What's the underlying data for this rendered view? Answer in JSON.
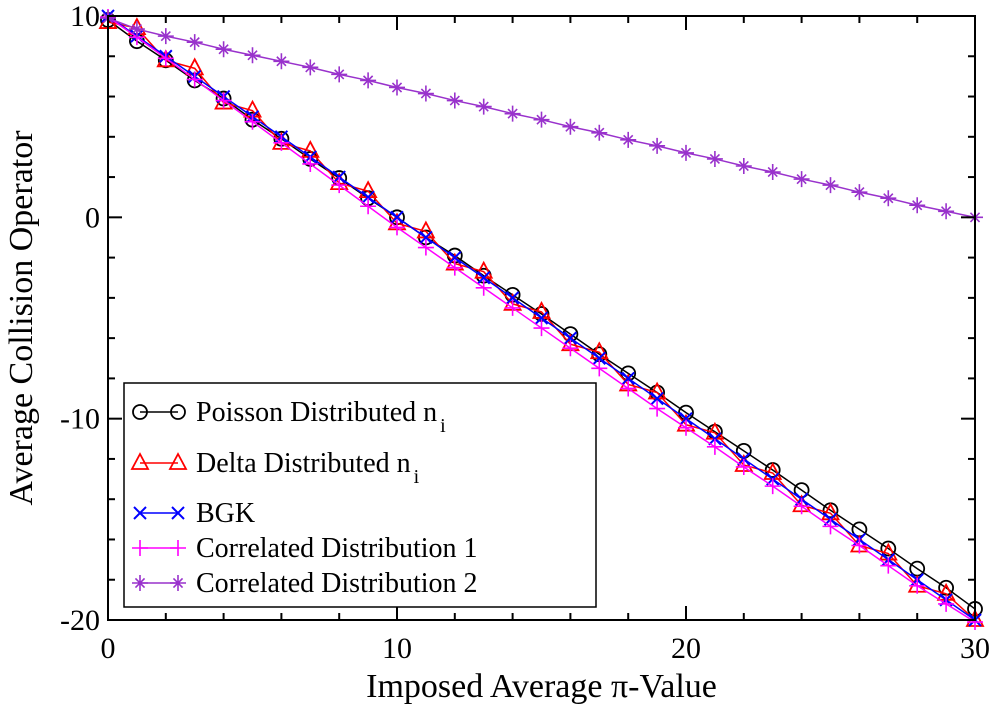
{
  "chart_data": {
    "type": "line",
    "title": "",
    "xlabel": "Imposed Average π-Value",
    "ylabel": "Average Collision Operator",
    "xlim": [
      0,
      30
    ],
    "ylim": [
      -20,
      10
    ],
    "xticks": [
      0,
      10,
      20,
      30
    ],
    "yticks": [
      -20,
      -10,
      0,
      10
    ],
    "xtick_labels": [
      "0",
      "10",
      "20",
      "30"
    ],
    "ytick_labels": [
      "-20",
      "-10",
      "0",
      "10"
    ],
    "grid": false,
    "legend_position": "bottom-left",
    "x": [
      0,
      1,
      2,
      3,
      4,
      5,
      6,
      7,
      8,
      9,
      10,
      11,
      12,
      13,
      14,
      15,
      16,
      17,
      18,
      19,
      20,
      21,
      22,
      23,
      24,
      25,
      26,
      27,
      28,
      29,
      30
    ],
    "series": [
      {
        "name": "Poisson Distributed n",
        "subscript": "i",
        "color": "#000000",
        "marker": "circle",
        "values": [
          9.8,
          8.75,
          7.8,
          6.8,
          5.9,
          4.85,
          3.9,
          2.9,
          1.95,
          0.95,
          0.0,
          -1.0,
          -1.9,
          -2.9,
          -3.85,
          -4.8,
          -5.8,
          -6.8,
          -7.75,
          -8.7,
          -9.7,
          -10.65,
          -11.6,
          -12.55,
          -13.55,
          -14.55,
          -15.5,
          -16.45,
          -17.45,
          -18.4,
          -19.45
        ]
      },
      {
        "name": "Delta Distributed n",
        "subscript": "i",
        "color": "#ff0000",
        "marker": "triangle",
        "values": [
          9.7,
          9.4,
          7.8,
          7.4,
          5.7,
          5.3,
          3.7,
          3.3,
          1.7,
          1.3,
          -0.3,
          -0.7,
          -2.3,
          -2.7,
          -4.3,
          -4.7,
          -6.3,
          -6.7,
          -8.3,
          -8.7,
          -10.3,
          -10.7,
          -12.3,
          -12.7,
          -14.3,
          -14.7,
          -16.3,
          -16.7,
          -18.3,
          -18.7,
          -20.0
        ]
      },
      {
        "name": "BGK",
        "subscript": "",
        "color": "#0000ff",
        "marker": "x",
        "values": [
          10.0,
          9.0,
          8.0,
          7.0,
          6.0,
          5.0,
          4.0,
          3.0,
          2.0,
          1.0,
          0.0,
          -1.0,
          -2.0,
          -3.0,
          -4.0,
          -5.0,
          -6.0,
          -7.0,
          -8.0,
          -9.0,
          -10.0,
          -11.0,
          -12.0,
          -13.0,
          -14.0,
          -15.0,
          -16.0,
          -17.0,
          -18.0,
          -19.0,
          -20.0
        ]
      },
      {
        "name": "Correlated Distribution 1",
        "subscript": "",
        "color": "#ff00ff",
        "marker": "plus",
        "values": [
          9.95,
          8.95,
          7.9,
          6.85,
          5.8,
          4.75,
          3.7,
          2.65,
          1.6,
          0.55,
          -0.5,
          -1.5,
          -2.5,
          -3.5,
          -4.5,
          -5.5,
          -6.5,
          -7.5,
          -8.5,
          -9.5,
          -10.45,
          -11.4,
          -12.4,
          -13.35,
          -14.35,
          -15.35,
          -16.3,
          -17.3,
          -18.3,
          -19.2,
          -20.1
        ]
      },
      {
        "name": "Correlated Distribution 2",
        "subscript": "",
        "color": "#9932cc",
        "marker": "star",
        "values": [
          9.9,
          9.35,
          9.0,
          8.7,
          8.35,
          8.05,
          7.75,
          7.45,
          7.1,
          6.8,
          6.45,
          6.15,
          5.8,
          5.5,
          5.15,
          4.85,
          4.5,
          4.2,
          3.85,
          3.55,
          3.2,
          2.9,
          2.55,
          2.25,
          1.9,
          1.6,
          1.25,
          0.95,
          0.6,
          0.3,
          0.0
        ]
      }
    ]
  }
}
